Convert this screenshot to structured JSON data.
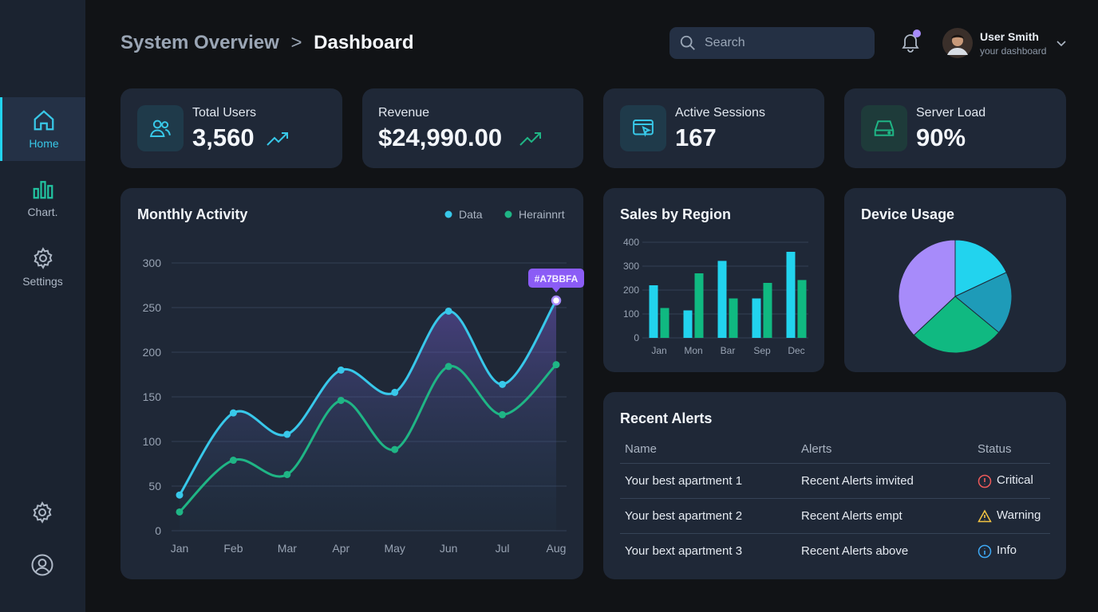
{
  "header": {
    "breadcrumb": "System Overview",
    "title": "Dashboard",
    "search": "Search",
    "user_name": "User Smith",
    "user_subtitle": "your dashboard"
  },
  "sidebar": {
    "items": [
      "Home",
      "Chart.",
      "Settings"
    ]
  },
  "stats": [
    {
      "label": "Total Users",
      "value": "3,560"
    },
    {
      "label": "Revenue",
      "value": "$24,990.00"
    },
    {
      "label": "Active Sessions",
      "value": "167"
    },
    {
      "label": "Server Load",
      "value": "90%"
    }
  ],
  "chart_data": [
    {
      "type": "line",
      "title": "Monthly Activity",
      "categories": [
        "Jan",
        "Feb",
        "Mar",
        "Apr",
        "May",
        "Jun",
        "Jul",
        "Aug"
      ],
      "series": [
        {
          "name": "Data",
          "color": "#38c8ea",
          "values": [
            40,
            132,
            108,
            180,
            155,
            246,
            164,
            258
          ]
        },
        {
          "name": "Herainnrt",
          "color": "#1fb585",
          "values": [
            21,
            79,
            63,
            146,
            91,
            184,
            130,
            186
          ]
        }
      ],
      "ylim": [
        0,
        300
      ],
      "yticks": [
        0,
        50,
        100,
        150,
        200,
        250,
        300
      ],
      "grid": true,
      "annotation": "#A7BBFA"
    },
    {
      "type": "bar",
      "title": "Sales by Region",
      "categories": [
        "Jan",
        "Mon",
        "Bar",
        "Sep",
        "Dec"
      ],
      "series": [
        {
          "color": "#22d3ee",
          "values": [
            220,
            115,
            322,
            165,
            360
          ]
        },
        {
          "color": "#10b981",
          "values": [
            125,
            270,
            165,
            230,
            242
          ]
        }
      ],
      "ylim": [
        0,
        400
      ],
      "yticks": [
        0,
        100,
        200,
        300,
        400
      ],
      "grid": true
    },
    {
      "type": "pie",
      "title": "Device Usage",
      "values": [
        18,
        18,
        27,
        37
      ],
      "colors": [
        "#22d3ee",
        "#1e9bb8",
        "#10b981",
        "#a78bfa"
      ]
    }
  ],
  "alerts": {
    "title": "Recent Alerts",
    "columns": [
      "Name",
      "Alerts",
      "Status"
    ],
    "rows": [
      [
        "Your best apartment 1",
        "Recent Alerts imvited",
        "Critical"
      ],
      [
        "Your best apartment 2",
        "Recent Alerts empt",
        "Warning"
      ],
      [
        "Your bext apartment 3",
        "Recent Alerts above",
        "Info"
      ]
    ]
  }
}
